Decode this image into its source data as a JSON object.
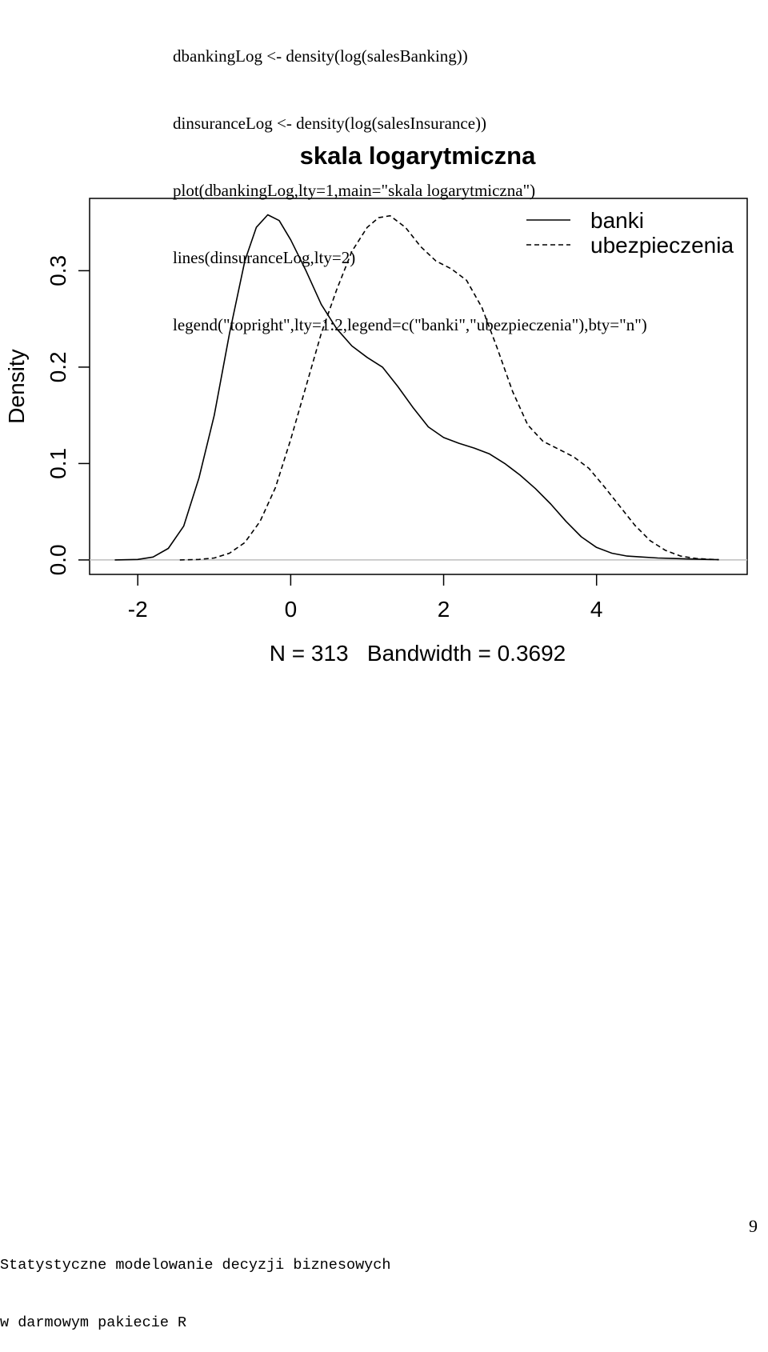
{
  "code_lines": [
    "dbankingLog <- density(log(salesBanking))",
    "dinsuranceLog <- density(log(salesInsurance))",
    "plot(dbankingLog,lty=1,main=\"skala logarytmiczna\")",
    "lines(dinsuranceLog,lty=2)",
    "legend(\"topright\",lty=1:2,legend=c(\"banki\",\"ubezpieczenia\"),bty=\"n\")"
  ],
  "footer": {
    "line1": "Statystyczne modelowanie decyzji biznesowych",
    "line2": "w darmowym pakiecie R",
    "page_number": "9"
  },
  "chart_data": {
    "type": "line",
    "title": "skala logarytmiczna",
    "xlabel": "N = 313   Bandwidth = 0.3692",
    "ylabel": "Density",
    "x_ticks": [
      "-2",
      "0",
      "2",
      "4"
    ],
    "y_ticks": [
      "0.0",
      "0.1",
      "0.2",
      "0.3"
    ],
    "xlim": [
      -2.63,
      5.97
    ],
    "ylim": [
      -0.015,
      0.375
    ],
    "grid": false,
    "legend_position": "top-right",
    "series": [
      {
        "name": "banki",
        "line_style": "solid",
        "points": [
          [
            -2.3,
            0.0
          ],
          [
            -2.0,
            0.0005
          ],
          [
            -1.8,
            0.003
          ],
          [
            -1.6,
            0.012
          ],
          [
            -1.4,
            0.035
          ],
          [
            -1.2,
            0.085
          ],
          [
            -1.0,
            0.15
          ],
          [
            -0.8,
            0.235
          ],
          [
            -0.6,
            0.31
          ],
          [
            -0.45,
            0.345
          ],
          [
            -0.3,
            0.358
          ],
          [
            -0.15,
            0.352
          ],
          [
            0.0,
            0.332
          ],
          [
            0.2,
            0.3
          ],
          [
            0.4,
            0.265
          ],
          [
            0.6,
            0.24
          ],
          [
            0.8,
            0.222
          ],
          [
            1.0,
            0.21
          ],
          [
            1.2,
            0.2
          ],
          [
            1.4,
            0.18
          ],
          [
            1.6,
            0.158
          ],
          [
            1.8,
            0.138
          ],
          [
            2.0,
            0.127
          ],
          [
            2.2,
            0.121
          ],
          [
            2.4,
            0.116
          ],
          [
            2.6,
            0.11
          ],
          [
            2.8,
            0.1
          ],
          [
            3.0,
            0.088
          ],
          [
            3.2,
            0.074
          ],
          [
            3.4,
            0.058
          ],
          [
            3.6,
            0.04
          ],
          [
            3.8,
            0.024
          ],
          [
            4.0,
            0.013
          ],
          [
            4.2,
            0.007
          ],
          [
            4.4,
            0.004
          ],
          [
            4.6,
            0.003
          ],
          [
            4.8,
            0.002
          ],
          [
            5.0,
            0.0015
          ],
          [
            5.2,
            0.001
          ],
          [
            5.6,
            0.0003
          ]
        ]
      },
      {
        "name": "ubezpieczenia",
        "line_style": "dashed",
        "points": [
          [
            -1.45,
            0.0
          ],
          [
            -1.2,
            0.0005
          ],
          [
            -1.0,
            0.002
          ],
          [
            -0.8,
            0.007
          ],
          [
            -0.6,
            0.018
          ],
          [
            -0.4,
            0.04
          ],
          [
            -0.2,
            0.075
          ],
          [
            0.0,
            0.125
          ],
          [
            0.2,
            0.18
          ],
          [
            0.4,
            0.235
          ],
          [
            0.6,
            0.28
          ],
          [
            0.8,
            0.32
          ],
          [
            1.0,
            0.345
          ],
          [
            1.15,
            0.355
          ],
          [
            1.3,
            0.357
          ],
          [
            1.5,
            0.345
          ],
          [
            1.7,
            0.325
          ],
          [
            1.9,
            0.31
          ],
          [
            2.1,
            0.302
          ],
          [
            2.3,
            0.29
          ],
          [
            2.5,
            0.262
          ],
          [
            2.7,
            0.22
          ],
          [
            2.9,
            0.175
          ],
          [
            3.1,
            0.14
          ],
          [
            3.3,
            0.123
          ],
          [
            3.5,
            0.115
          ],
          [
            3.7,
            0.107
          ],
          [
            3.9,
            0.095
          ],
          [
            4.1,
            0.076
          ],
          [
            4.3,
            0.056
          ],
          [
            4.5,
            0.036
          ],
          [
            4.7,
            0.02
          ],
          [
            4.9,
            0.01
          ],
          [
            5.1,
            0.004
          ],
          [
            5.3,
            0.0015
          ],
          [
            5.6,
            0.0002
          ]
        ]
      }
    ]
  }
}
